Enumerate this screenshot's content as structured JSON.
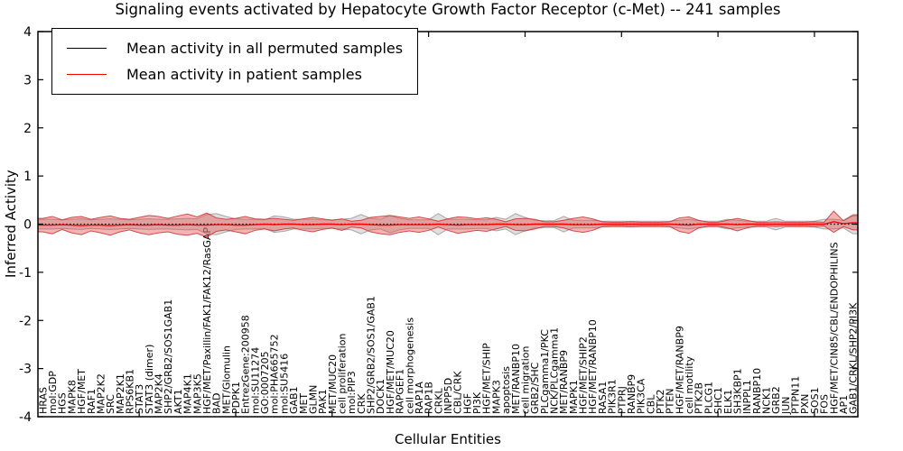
{
  "title": "Signaling events activated by Hepatocyte Growth Factor Receptor (c-Met) -- 241 samples",
  "legend": [
    {
      "label": "Mean activity in all permuted samples",
      "color": "#000000"
    },
    {
      "label": "Mean activity in patient samples",
      "color": "#ff0000"
    }
  ],
  "chart_data": {
    "type": "line",
    "title": "Signaling events activated by Hepatocyte Growth Factor Receptor (c-Met) -- 241 samples",
    "xlabel": "Cellular Entities",
    "ylabel": "Inferred Activity",
    "ylim": [
      -4,
      4
    ],
    "yticks": [
      -4,
      -3,
      -2,
      -1,
      0,
      1,
      2,
      3,
      4
    ],
    "xtick_step": 10,
    "grid": false,
    "legend_position": "upper left",
    "categories": [
      "HRAS",
      "mol:GDP",
      "HGS",
      "MAPK8",
      "HGF/MET",
      "RAF1",
      "MAP2K2",
      "SRC",
      "MAP2K1",
      "RPS6KB1",
      "STAT3",
      "STAT3 (dimer)",
      "MAP2K4",
      "SHP2/GRB2/SOS1GAB1",
      "AKT1",
      "MAP4K1",
      "MAP3K5",
      "HGF/MET/Paxillin/FAK1/FAK12/RasGAP",
      "BAD",
      "MET/Glomulin",
      "PDPK1",
      "EntrezGene:200958",
      "mol:SU11274",
      "GO:0007205",
      "mol:PHA665752",
      "mol:SU5416",
      "GAB1",
      "MET",
      "GLMN",
      "PAK1",
      "MET/MUC20",
      "cell proliferation",
      "mol:PIP3",
      "CRK",
      "SHP2/GRB2/SOS1/GAB1",
      "DOCK1",
      "HGF/MET/MUC20",
      "RAPGEF1",
      "cell morphogenesis",
      "RAP1A",
      "RAP1B",
      "CRKL",
      "INPP5D",
      "CBL/CRK",
      "HGF",
      "PI3K",
      "HGF/MET/SHIP",
      "MAPK3",
      "apoptosis",
      "MET/RANBP10",
      "cell migration",
      "GRB2/SHC",
      "PLCgamma1/PKC",
      "NCK/PLCgamma1",
      "MET/RANBP9",
      "MAPK1",
      "HGF/MET/SHIP2",
      "HGF/MET/RANBP10",
      "RASA1",
      "PIK3R1",
      "PTPRJ",
      "RANBP9",
      "PIK3CA",
      "CBL",
      "PTK2",
      "PTEN",
      "HGF/MET/RANBP9",
      "cell motility",
      "PTK2B",
      "PLCG1",
      "SHC1",
      "ELK1",
      "SH3KBP1",
      "INPPL1",
      "RANBP10",
      "NCK1",
      "GRB2",
      "JUN",
      "PTPN11",
      "PXN",
      "SOS1",
      "FOS",
      "HGF/MET/CIN85/CBL/ENDOPHILINS",
      "AP1",
      "GAB1/CRKL/SHP2/PI3K"
    ],
    "series": [
      {
        "name": "Mean activity in all permuted samples",
        "color": "#000000",
        "style": "dotted",
        "values": [
          0,
          0,
          0,
          0,
          0,
          0,
          0,
          0,
          0,
          0,
          0,
          0,
          0,
          0,
          0,
          0,
          0,
          0,
          0,
          0,
          0,
          0,
          0,
          0,
          0,
          0,
          0,
          0,
          0,
          0,
          0,
          0,
          0,
          0,
          0,
          0,
          0,
          0,
          0,
          0,
          0,
          0,
          0,
          0,
          0,
          0,
          0,
          0,
          0,
          0,
          0,
          0,
          0,
          0,
          0,
          0,
          0,
          0,
          0,
          0,
          0,
          0,
          0,
          0,
          0,
          0,
          0,
          0,
          0,
          0,
          0,
          0,
          0,
          0,
          0,
          0,
          0,
          0,
          0,
          0,
          0,
          0,
          0,
          0,
          0
        ]
      },
      {
        "name": "Mean activity in patient samples",
        "color": "#ff0000",
        "style": "solid",
        "values": [
          -0.02,
          -0.02,
          -0.01,
          -0.02,
          -0.03,
          -0.02,
          -0.02,
          -0.03,
          -0.02,
          -0.01,
          -0.02,
          -0.02,
          -0.01,
          -0.02,
          -0.02,
          -0.01,
          -0.02,
          -0.02,
          -0.01,
          -0.01,
          -0.02,
          -0.02,
          -0.01,
          0,
          -0.01,
          0,
          0,
          -0.01,
          -0.01,
          0,
          0,
          -0.01,
          0,
          0,
          -0.01,
          -0.02,
          -0.02,
          -0.01,
          -0.01,
          -0.01,
          -0.01,
          0,
          -0.01,
          -0.02,
          -0.01,
          -0.01,
          -0.01,
          0,
          0,
          -0.01,
          -0.01,
          0,
          0,
          0,
          0,
          -0.01,
          -0.01,
          -0.01,
          0,
          0,
          0,
          0,
          0,
          0,
          0,
          0,
          -0.01,
          -0.02,
          0,
          0,
          0,
          0,
          -0.01,
          0,
          0,
          0,
          0,
          0,
          0,
          0,
          0,
          0,
          0.05,
          0.01,
          0.03
        ]
      }
    ],
    "bands": [
      {
        "name": "permuted-std-band",
        "fill": "#b0b0b0",
        "stroke": "#9a9a9a",
        "opacity": 0.4,
        "halfwidths": [
          0.1,
          0.1,
          0.09,
          0.1,
          0.11,
          0.09,
          0.1,
          0.11,
          0.1,
          0.09,
          0.1,
          0.11,
          0.1,
          0.1,
          0.11,
          0.12,
          0.11,
          0.2,
          0.22,
          0.16,
          0.11,
          0.1,
          0.1,
          0.09,
          0.17,
          0.15,
          0.1,
          0.1,
          0.1,
          0.09,
          0.09,
          0.1,
          0.12,
          0.2,
          0.12,
          0.1,
          0.18,
          0.12,
          0.09,
          0.09,
          0.09,
          0.22,
          0.1,
          0.1,
          0.1,
          0.09,
          0.09,
          0.14,
          0.1,
          0.22,
          0.14,
          0.08,
          0.07,
          0.07,
          0.16,
          0.08,
          0.08,
          0.08,
          0.06,
          0.06,
          0.06,
          0.06,
          0.06,
          0.06,
          0.06,
          0.06,
          0.08,
          0.1,
          0.07,
          0.06,
          0.06,
          0.1,
          0.08,
          0.06,
          0.06,
          0.06,
          0.12,
          0.06,
          0.06,
          0.06,
          0.06,
          0.1,
          0.1,
          0.08,
          0.2
        ]
      },
      {
        "name": "patient-std-band",
        "fill": "#e84c4c",
        "stroke": "#d03030",
        "opacity": 0.42,
        "halfwidths": [
          0.14,
          0.18,
          0.1,
          0.16,
          0.19,
          0.12,
          0.16,
          0.2,
          0.14,
          0.11,
          0.16,
          0.2,
          0.17,
          0.14,
          0.19,
          0.22,
          0.17,
          0.25,
          0.14,
          0.11,
          0.14,
          0.18,
          0.12,
          0.1,
          0.13,
          0.1,
          0.08,
          0.12,
          0.15,
          0.11,
          0.08,
          0.12,
          0.06,
          0.08,
          0.15,
          0.18,
          0.2,
          0.16,
          0.13,
          0.16,
          0.12,
          0.06,
          0.12,
          0.17,
          0.15,
          0.12,
          0.14,
          0.1,
          0.05,
          0.12,
          0.13,
          0.1,
          0.05,
          0.05,
          0.08,
          0.13,
          0.16,
          0.12,
          0.05,
          0.04,
          0.04,
          0.05,
          0.04,
          0.04,
          0.04,
          0.05,
          0.14,
          0.17,
          0.08,
          0.04,
          0.04,
          0.08,
          0.13,
          0.08,
          0.04,
          0.04,
          0.05,
          0.04,
          0.04,
          0.04,
          0.05,
          0.04,
          0.22,
          0.06,
          0.15
        ]
      }
    ]
  }
}
